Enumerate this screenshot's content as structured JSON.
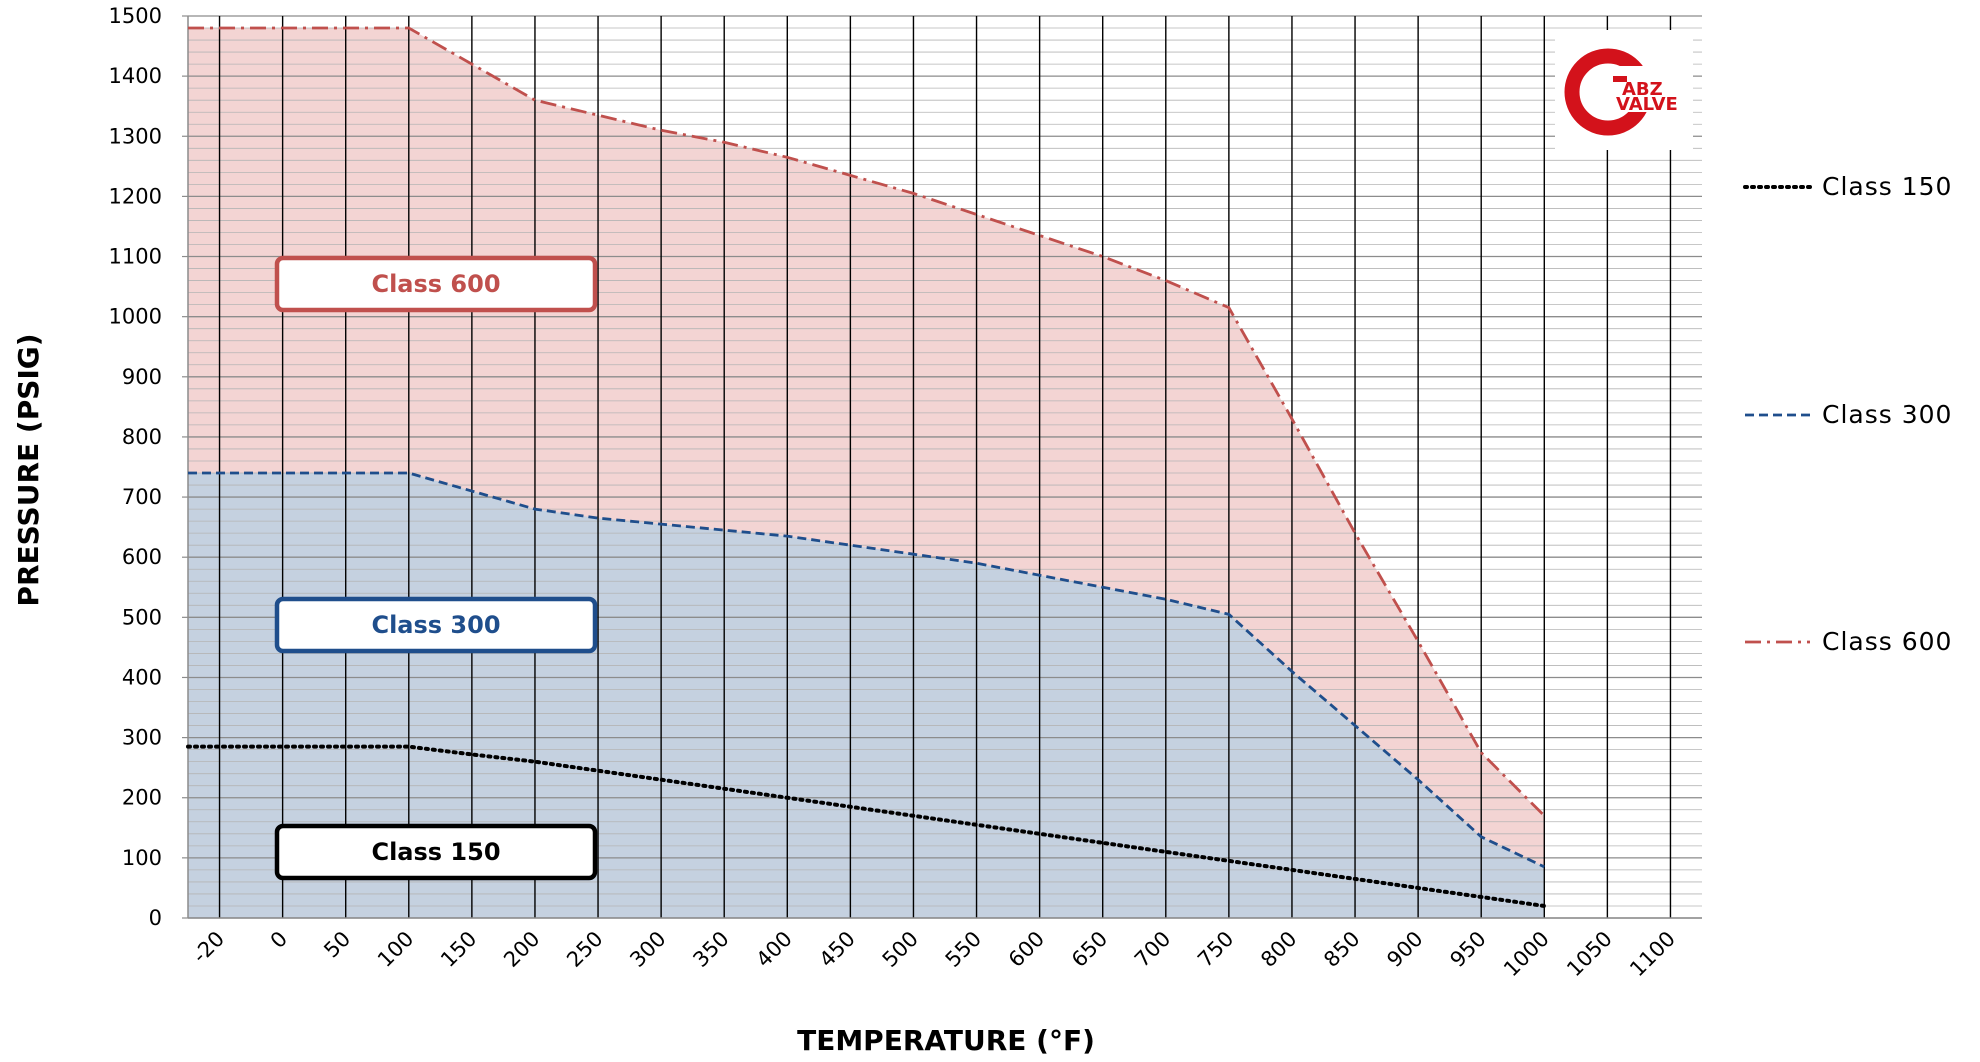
{
  "chart_data": {
    "type": "area",
    "xlabel": "TEMPERATURE (°F)",
    "ylabel": "PRESSURE (PSIG)",
    "x_categories": [
      "-20",
      "0",
      "50",
      "100",
      "150",
      "200",
      "250",
      "300",
      "350",
      "400",
      "450",
      "500",
      "550",
      "600",
      "650",
      "700",
      "750",
      "800",
      "850",
      "900",
      "950",
      "1000",
      "1050",
      "1100"
    ],
    "y_ticks": [
      0,
      100,
      200,
      300,
      400,
      500,
      600,
      700,
      800,
      900,
      1000,
      1100,
      1200,
      1300,
      1400,
      1500
    ],
    "ylim": [
      0,
      1500
    ],
    "grid": true,
    "legend_position": "right",
    "series": [
      {
        "name": "Class 150",
        "style": "dotted",
        "color": "#000000",
        "fill": null,
        "box_label": "Class 150",
        "values": [
          285,
          285,
          285,
          285,
          272,
          260,
          245,
          230,
          215,
          200,
          185,
          170,
          155,
          140,
          125,
          110,
          95,
          80,
          65,
          50,
          35,
          20,
          null,
          null
        ]
      },
      {
        "name": "Class 300",
        "style": "dashed",
        "color": "#1f4e8c",
        "fill": "#c5d1e0",
        "box_label": "Class 300",
        "values": [
          740,
          740,
          740,
          740,
          710,
          680,
          665,
          655,
          645,
          635,
          620,
          605,
          590,
          570,
          550,
          530,
          505,
          410,
          320,
          230,
          135,
          85,
          null,
          null
        ]
      },
      {
        "name": "Class 600",
        "style": "dashdot",
        "color": "#c0504d",
        "fill": "#f3d4d3",
        "box_label": "Class 600",
        "values": [
          1480,
          1480,
          1480,
          1480,
          1420,
          1360,
          1335,
          1310,
          1290,
          1265,
          1235,
          1205,
          1170,
          1135,
          1100,
          1060,
          1015,
          830,
          640,
          460,
          275,
          170,
          null,
          null
        ]
      }
    ]
  },
  "logo": {
    "brand_top": "ABZ",
    "brand_bottom": "VALVE",
    "mark": "C",
    "colors": {
      "red": "#d3121b",
      "white": "#ffffff"
    }
  }
}
